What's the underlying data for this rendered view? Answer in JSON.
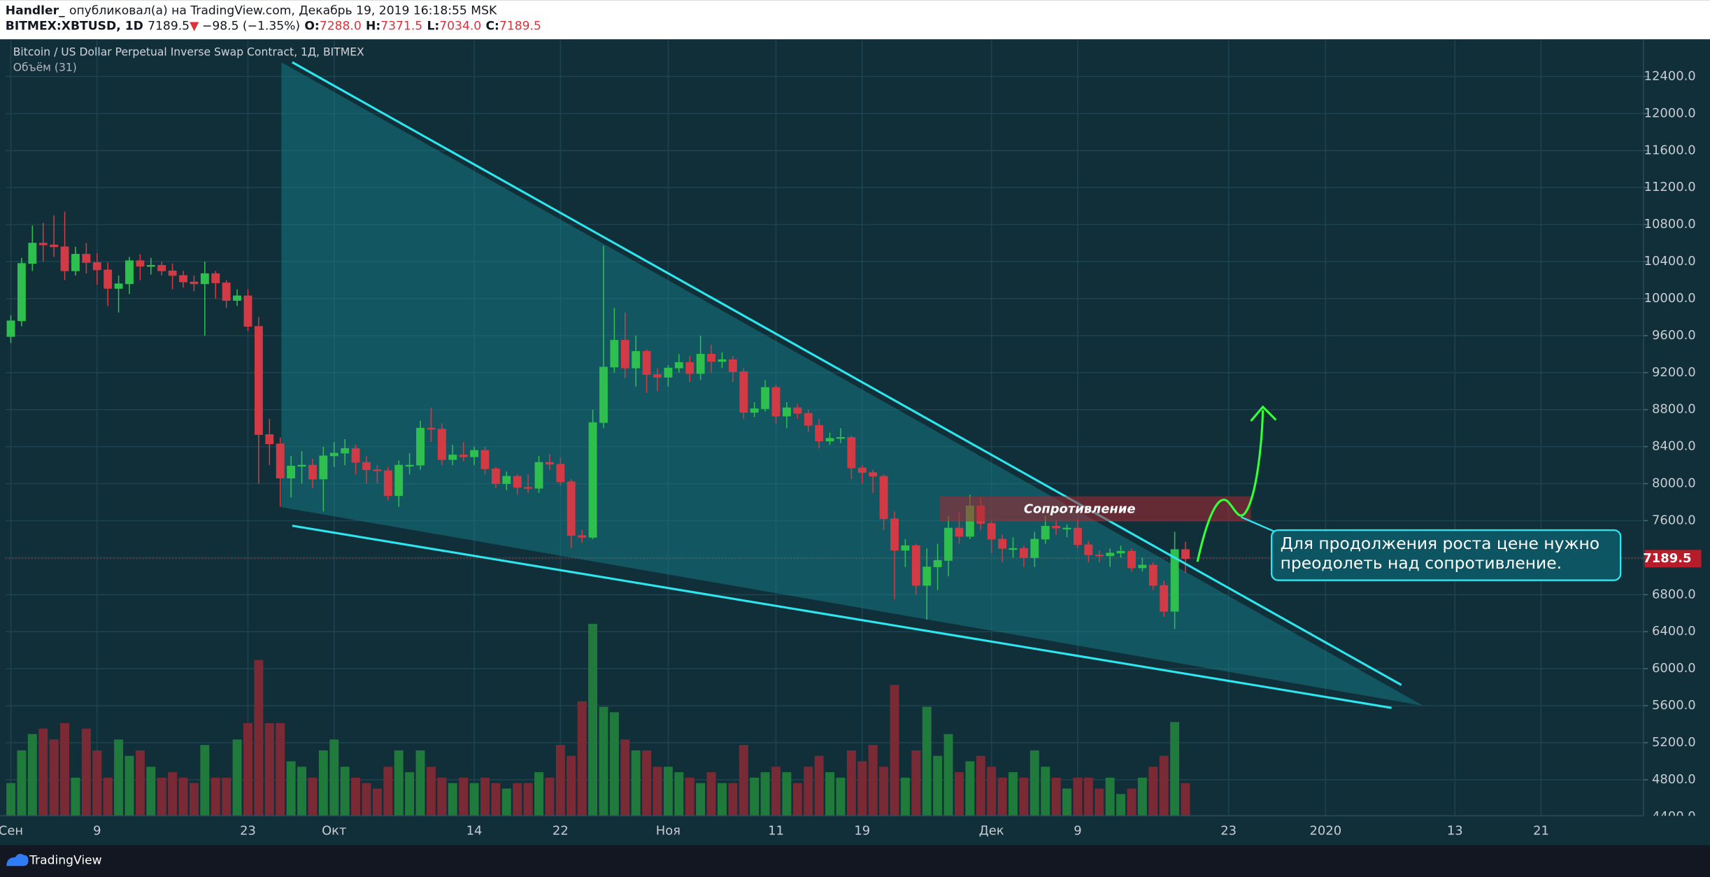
{
  "header": {
    "author": "Handler_",
    "published": "опубликовал(а) на TradingView.com, Декабрь 19, 2019 16:18:55 MSK",
    "symbol": "BITMEX:XBTUSD, 1D",
    "arrow": "▼",
    "change": "−98.5 (−1.35%)",
    "ohlc": [
      {
        "label": "O:",
        "value": "7288.0"
      },
      {
        "label": "H:",
        "value": "7371.5"
      },
      {
        "label": "L:",
        "value": "7034.0"
      },
      {
        "label": "C:",
        "value": "7189.5"
      }
    ]
  },
  "chart_data": {
    "type": "candlestick",
    "title": "Bitcoin / US Dollar Perpetual Inverse Swap Contract, 1Д, BITMEX",
    "indicator": "Объём (31)",
    "open": [
      9590,
      9760,
      10380,
      10600,
      10580,
      10560,
      10300,
      10480,
      10390,
      10310,
      10110,
      10160,
      10410,
      10350,
      10360,
      10300,
      10250,
      10180,
      10160,
      10270,
      10170,
      9980,
      10030,
      9700,
      8530,
      8430,
      8060,
      8190,
      8200,
      8050,
      8300,
      8330,
      8380,
      8230,
      8150,
      8140,
      7870,
      8200,
      8200,
      8600,
      8590,
      8260,
      8310,
      8290,
      8360,
      8160,
      8000,
      8080,
      7960,
      7950,
      8230,
      8210,
      8020,
      7440,
      7420,
      8660,
      9260,
      9550,
      9250,
      9430,
      9180,
      9150,
      9250,
      9310,
      9190,
      9400,
      9320,
      9340,
      9210,
      8770,
      8810,
      9040,
      8730,
      8820,
      8760,
      8630,
      8460,
      8490,
      8500,
      8170,
      8120,
      8080,
      7620,
      7280,
      7330,
      6900,
      7100,
      7170,
      7520,
      7430,
      7760,
      7570,
      7400,
      7300,
      7300,
      7200,
      7400,
      7540,
      7520,
      7520,
      7340,
      7230,
      7220,
      7250,
      7270,
      7090,
      7120,
      6900,
      6620,
      7288
    ],
    "high": [
      9820,
      10440,
      10790,
      10820,
      10900,
      10940,
      10560,
      10600,
      10490,
      10390,
      10250,
      10450,
      10480,
      10440,
      10400,
      10380,
      10300,
      10250,
      10400,
      10300,
      10200,
      10100,
      10100,
      9800,
      8700,
      8500,
      8300,
      8350,
      8270,
      8400,
      8450,
      8480,
      8420,
      8300,
      8200,
      8180,
      8250,
      8330,
      8680,
      8820,
      8650,
      8420,
      8450,
      8400,
      8400,
      8180,
      8130,
      8100,
      8100,
      8300,
      8320,
      8280,
      8050,
      7500,
      8800,
      10570,
      9900,
      9850,
      9600,
      9450,
      9250,
      9280,
      9400,
      9380,
      9600,
      9500,
      9420,
      9380,
      9250,
      8880,
      9120,
      9070,
      8880,
      8860,
      8800,
      8700,
      8550,
      8600,
      8520,
      8200,
      8150,
      8100,
      7700,
      7400,
      7350,
      7300,
      7350,
      7650,
      7700,
      7880,
      7850,
      7600,
      7450,
      7420,
      7330,
      7480,
      7650,
      7600,
      7560,
      7620,
      7380,
      7280,
      7300,
      7330,
      7300,
      7200,
      7150,
      6950,
      7480,
      7371.5
    ],
    "low": [
      9520,
      9700,
      10300,
      10400,
      10450,
      10200,
      10250,
      10270,
      10150,
      9920,
      9850,
      10050,
      10200,
      10260,
      10250,
      10100,
      10120,
      10080,
      9600,
      10000,
      9900,
      9920,
      9650,
      8000,
      8200,
      7750,
      7850,
      8000,
      7950,
      7700,
      8180,
      8200,
      8100,
      8000,
      8000,
      7820,
      7750,
      8100,
      8150,
      8450,
      8200,
      8200,
      8240,
      8200,
      8100,
      7950,
      7930,
      7880,
      7900,
      7900,
      8150,
      7980,
      7300,
      7360,
      7400,
      8600,
      9200,
      9140,
      9050,
      8980,
      9000,
      9050,
      9200,
      9100,
      9120,
      9200,
      9250,
      9100,
      8700,
      8720,
      8780,
      8650,
      8600,
      8700,
      8560,
      8380,
      8420,
      8440,
      8050,
      8000,
      7900,
      7500,
      6750,
      7100,
      6800,
      6530,
      6850,
      7000,
      7350,
      7400,
      7500,
      7250,
      7150,
      7200,
      7100,
      7100,
      7350,
      7450,
      7420,
      7300,
      7150,
      7150,
      7100,
      7200,
      7050,
      7050,
      6850,
      6560,
      6430,
      7034
    ],
    "close": [
      9760,
      10380,
      10600,
      10580,
      10560,
      10300,
      10480,
      10390,
      10310,
      10110,
      10160,
      10410,
      10350,
      10360,
      10300,
      10250,
      10180,
      10160,
      10270,
      10170,
      9980,
      10030,
      9700,
      8530,
      8430,
      8060,
      8190,
      8200,
      8050,
      8300,
      8330,
      8380,
      8230,
      8150,
      8140,
      7870,
      8200,
      8200,
      8600,
      8590,
      8260,
      8310,
      8290,
      8360,
      8160,
      8000,
      8080,
      7960,
      7950,
      8230,
      8210,
      8020,
      7440,
      7420,
      8660,
      9260,
      9550,
      9250,
      9430,
      9180,
      9150,
      9250,
      9310,
      9190,
      9400,
      9320,
      9340,
      9210,
      8770,
      8810,
      9040,
      8730,
      8820,
      8760,
      8630,
      8460,
      8490,
      8500,
      8170,
      8120,
      8080,
      7620,
      7280,
      7330,
      6900,
      7100,
      7170,
      7520,
      7430,
      7760,
      7570,
      7400,
      7300,
      7300,
      7200,
      7400,
      7540,
      7520,
      7520,
      7340,
      7230,
      7220,
      7250,
      7270,
      7090,
      7120,
      6900,
      6620,
      7288,
      7189.5
    ],
    "volume": [
      30,
      60,
      75,
      80,
      70,
      85,
      35,
      80,
      60,
      35,
      70,
      55,
      60,
      45,
      35,
      40,
      35,
      30,
      65,
      35,
      35,
      70,
      85,
      143,
      85,
      85,
      50,
      45,
      35,
      60,
      70,
      45,
      35,
      30,
      25,
      45,
      60,
      40,
      60,
      45,
      35,
      30,
      35,
      30,
      35,
      30,
      25,
      30,
      30,
      40,
      35,
      65,
      55,
      105,
      176,
      100,
      95,
      70,
      60,
      60,
      45,
      45,
      40,
      35,
      30,
      40,
      30,
      30,
      65,
      35,
      40,
      45,
      40,
      30,
      45,
      55,
      40,
      35,
      60,
      50,
      65,
      45,
      120,
      35,
      60,
      100,
      55,
      75,
      40,
      50,
      55,
      45,
      35,
      40,
      35,
      60,
      45,
      35,
      25,
      35,
      35,
      25,
      35,
      20,
      25,
      35,
      45,
      55,
      86,
      30
    ],
    "ylim": [
      4410,
      12790
    ],
    "yticks": [
      {
        "value": 4400,
        "label": "4400.0"
      },
      {
        "value": 4800,
        "label": "4800.0"
      },
      {
        "value": 5200,
        "label": "5200.0"
      },
      {
        "value": 5600,
        "label": "5600.0"
      },
      {
        "value": 6000,
        "label": "6000.0"
      },
      {
        "value": 6400,
        "label": "6400.0"
      },
      {
        "value": 6800,
        "label": "6800.0"
      },
      {
        "value": 7200,
        "label": "7200.0"
      },
      {
        "value": 7600,
        "label": "7600.0"
      },
      {
        "value": 8000,
        "label": "8000.0"
      },
      {
        "value": 8400,
        "label": "8400.0"
      },
      {
        "value": 8800,
        "label": "8800.0"
      },
      {
        "value": 9200,
        "label": "9200.0"
      },
      {
        "value": 9600,
        "label": "9600.0"
      },
      {
        "value": 10000,
        "label": "10000.0"
      },
      {
        "value": 10400,
        "label": "10400.0"
      },
      {
        "value": 10800,
        "label": "10800.0"
      },
      {
        "value": 11200,
        "label": "11200.0"
      },
      {
        "value": 11600,
        "label": "11600.0"
      },
      {
        "value": 12000,
        "label": "12000.0"
      },
      {
        "value": 12400,
        "label": "12400.0"
      }
    ],
    "xlim": [
      -0.5,
      151.5
    ],
    "xticks": [
      {
        "value": 0,
        "label": "Сен"
      },
      {
        "value": 8,
        "label": "9"
      },
      {
        "value": 22,
        "label": "23"
      },
      {
        "value": 30,
        "label": "Окт"
      },
      {
        "value": 43,
        "label": "14"
      },
      {
        "value": 51,
        "label": "22"
      },
      {
        "value": 61,
        "label": "Ноя"
      },
      {
        "value": 71,
        "label": "11"
      },
      {
        "value": 79,
        "label": "19"
      },
      {
        "value": 91,
        "label": "Дек"
      },
      {
        "value": 99,
        "label": "9"
      },
      {
        "value": 113,
        "label": "23"
      },
      {
        "value": 122,
        "label": "2020"
      },
      {
        "value": 134,
        "label": "13"
      },
      {
        "value": 142,
        "label": "21"
      }
    ],
    "colors": {
      "up": "#2fbf4f",
      "down": "#d23a45",
      "volume_up": "#1f7a3c",
      "volume_down": "#7a2a35"
    },
    "grid": true,
    "annotations": {
      "resistance": "Сопротивление",
      "callout": [
        "Для продолжения роста цене нужно",
        "преодолеть над сопротивление."
      ]
    }
  },
  "footer": {
    "brand": "TradingView"
  }
}
